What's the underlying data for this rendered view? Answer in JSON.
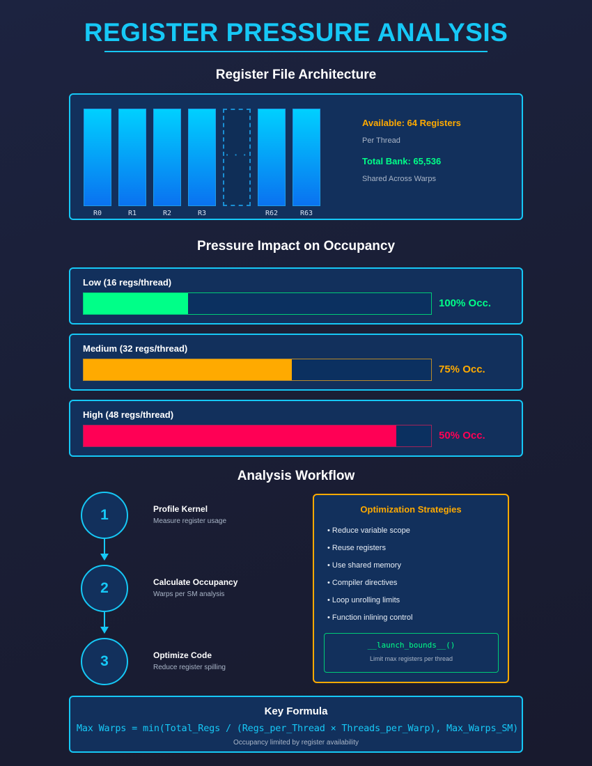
{
  "title": "REGISTER PRESSURE ANALYSIS",
  "architecture": {
    "heading": "Register File Architecture",
    "registers": [
      "R0",
      "R1",
      "R2",
      "R3",
      "",
      "R62",
      "R63"
    ],
    "ellipsis": "· · ·",
    "available": "Available: 64 Registers",
    "available_sub": "Per Thread",
    "total_bank": "Total Bank: 65,536",
    "total_bank_sub": "Shared Across Warps"
  },
  "pressure": {
    "heading": "Pressure Impact on Occupancy",
    "levels": [
      {
        "label": "Low (16 regs/thread)",
        "occupancy": "100% Occ.",
        "fill_fraction": 0.3,
        "color": "#00ff88"
      },
      {
        "label": "Medium (32 regs/thread)",
        "occupancy": "75% Occ.",
        "fill_fraction": 0.6,
        "color": "#ffaa00"
      },
      {
        "label": "High (48 regs/thread)",
        "occupancy": "50% Occ.",
        "fill_fraction": 0.9,
        "color": "#ff0055"
      }
    ]
  },
  "workflow": {
    "heading": "Analysis Workflow",
    "steps": [
      {
        "number": "1",
        "title": "Profile Kernel",
        "desc": "Measure register usage"
      },
      {
        "number": "2",
        "title": "Calculate Occupancy",
        "desc": "Warps per SM analysis"
      },
      {
        "number": "3",
        "title": "Optimize Code",
        "desc": "Reduce register spilling"
      }
    ]
  },
  "strategies": {
    "heading": "Optimization Strategies",
    "items": [
      "• Reduce variable scope",
      "• Reuse registers",
      "• Use shared memory",
      "• Compiler directives",
      "• Loop unrolling limits",
      "• Function inlining control"
    ],
    "code": "__launch_bounds__()",
    "code_desc": "Limit max registers per thread"
  },
  "formula": {
    "heading": "Key Formula",
    "expression": "Max Warps = min(Total_Regs / (Regs_per_Thread × Threads_per_Warp), Max_Warps_SM)",
    "note": "Occupancy limited by register availability"
  },
  "colors": {
    "accent": "#16c8f6",
    "available": "#ffaa00",
    "total_bank": "#00ff88",
    "panel_bg": "#12305c"
  }
}
